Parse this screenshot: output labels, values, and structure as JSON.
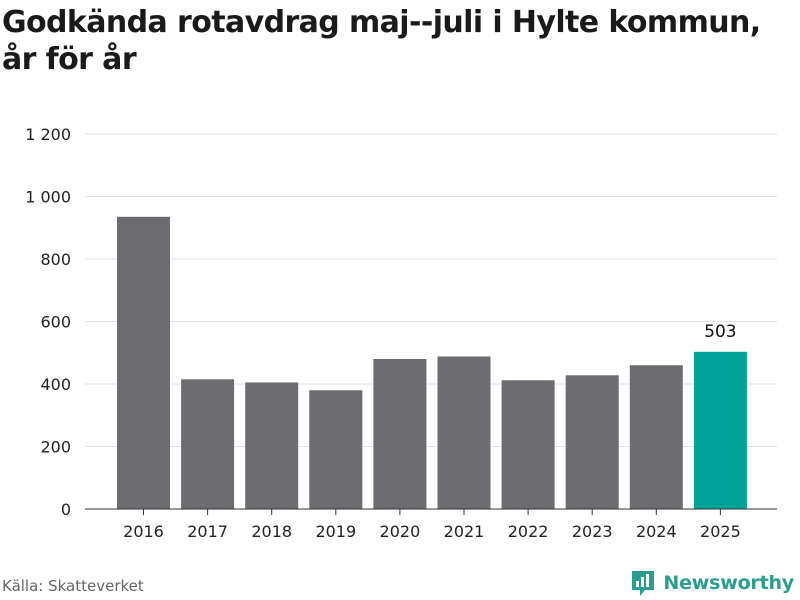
{
  "title": "Godkända rotavdrag maj--juli i Hylte kommun, år för år",
  "source": "Källa: Skatteverket",
  "brand": {
    "name": "Newsworthy",
    "icon": "newsworthy-logo-icon",
    "color": "#2a9d8f"
  },
  "colors": {
    "bar": "#6d6c71",
    "highlight": "#00a398",
    "grid": "#e2e2e2",
    "axis": "#333333"
  },
  "chart_data": {
    "type": "bar",
    "title": "Godkända rotavdrag maj--juli i Hylte kommun, år för år",
    "xlabel": "",
    "ylabel": "",
    "categories": [
      "2016",
      "2017",
      "2018",
      "2019",
      "2020",
      "2021",
      "2022",
      "2023",
      "2024",
      "2025"
    ],
    "values": [
      935,
      415,
      405,
      380,
      480,
      488,
      412,
      428,
      460,
      503
    ],
    "highlight_index": 9,
    "data_labels": [
      {
        "index": 9,
        "text": "503"
      }
    ],
    "ylim": [
      0,
      1200
    ],
    "yticks": [
      0,
      200,
      400,
      600,
      800,
      1000,
      1200
    ],
    "ytick_labels": [
      "0",
      "200",
      "400",
      "600",
      "800",
      "1 000",
      "1 200"
    ],
    "grid": true,
    "legend": "none"
  }
}
